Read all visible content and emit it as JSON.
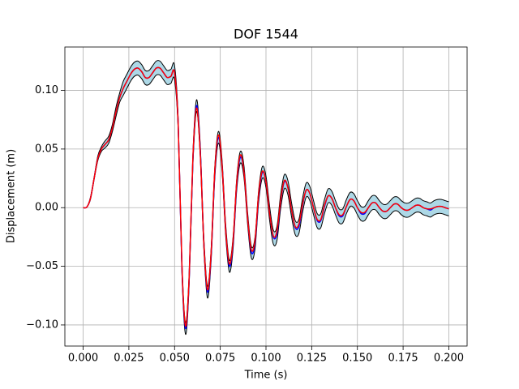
{
  "chart_data": {
    "type": "line",
    "title": "DOF 1544",
    "x_label": "Time (s)",
    "y_label": "Displacement (m)",
    "x": [
      0,
      0.002,
      0.004,
      0.006,
      0.008,
      0.01,
      0.012,
      0.014,
      0.016,
      0.018,
      0.02,
      0.022,
      0.024,
      0.026,
      0.028,
      0.03,
      0.032,
      0.034,
      0.036,
      0.038,
      0.04,
      0.042,
      0.044,
      0.046,
      0.048,
      0.05,
      0.052,
      0.054,
      0.056,
      0.058,
      0.06,
      0.062,
      0.064,
      0.066,
      0.068,
      0.07,
      0.072,
      0.074,
      0.076,
      0.078,
      0.08,
      0.082,
      0.084,
      0.086,
      0.088,
      0.09,
      0.092,
      0.094,
      0.096,
      0.098,
      0.1,
      0.102,
      0.104,
      0.106,
      0.108,
      0.11,
      0.112,
      0.114,
      0.116,
      0.118,
      0.12,
      0.122,
      0.124,
      0.126,
      0.128,
      0.13,
      0.132,
      0.134,
      0.136,
      0.138,
      0.14,
      0.142,
      0.144,
      0.146,
      0.148,
      0.15,
      0.152,
      0.154,
      0.156,
      0.158,
      0.16,
      0.162,
      0.164,
      0.166,
      0.168,
      0.17,
      0.172,
      0.174,
      0.176,
      0.178,
      0.18,
      0.182,
      0.184,
      0.186,
      0.188,
      0.19,
      0.192,
      0.194,
      0.196,
      0.198,
      0.2
    ],
    "series": [
      {
        "color": "#000000",
        "values": [
          0,
          0.0005,
          0.009,
          0.026,
          0.044,
          0.052,
          0.057,
          0.061,
          0.071,
          0.086,
          0.098,
          0.108,
          0.114,
          0.12,
          0.124,
          0.125,
          0.122,
          0.117,
          0.117,
          0.121,
          0.125,
          0.125,
          0.121,
          0.117,
          0.118,
          0.121,
          0.075,
          -0.045,
          -0.098,
          -0.055,
          0.045,
          0.092,
          0.055,
          -0.025,
          -0.067,
          -0.035,
          0.035,
          0.065,
          0.04,
          -0.015,
          -0.045,
          -0.025,
          0.025,
          0.048,
          0.035,
          -0.005,
          -0.033,
          -0.025,
          0.015,
          0.035,
          0.027,
          0.001,
          -0.019,
          -0.016,
          0.011,
          0.028,
          0.023,
          0.004,
          -0.011,
          -0.01,
          0.008,
          0.021,
          0.018,
          0.006,
          -0.005,
          -0.005,
          0.007,
          0.016,
          0.014,
          0.006,
          -0.001,
          -0.001,
          0.007,
          0.013,
          0.012,
          0.006,
          0.001,
          0.001,
          0.006,
          0.01,
          0.01,
          0.006,
          0.003,
          0.003,
          0.006,
          0.009,
          0.009,
          0.006,
          0.004,
          0.004,
          0.006,
          0.008,
          0.008,
          0.006,
          0.005,
          0.004,
          0.006,
          0.007,
          0.007,
          0.006,
          0.005
        ]
      },
      {
        "color": "#000000",
        "values": [
          0,
          0.0005,
          0.007,
          0.024,
          0.04,
          0.048,
          0.051,
          0.055,
          0.065,
          0.078,
          0.09,
          0.096,
          0.102,
          0.108,
          0.112,
          0.113,
          0.11,
          0.105,
          0.105,
          0.109,
          0.113,
          0.113,
          0.109,
          0.105,
          0.106,
          0.109,
          0.065,
          -0.055,
          -0.108,
          -0.065,
          0.035,
          0.082,
          0.045,
          -0.035,
          -0.077,
          -0.045,
          0.025,
          0.055,
          0.03,
          -0.025,
          -0.055,
          -0.035,
          0.015,
          0.038,
          0.025,
          -0.015,
          -0.043,
          -0.035,
          0.005,
          0.025,
          0.017,
          -0.011,
          -0.031,
          -0.028,
          -0.001,
          0.016,
          0.011,
          -0.008,
          -0.023,
          -0.022,
          -0.004,
          0.009,
          0.006,
          -0.006,
          -0.017,
          -0.017,
          -0.005,
          0.004,
          0.002,
          -0.006,
          -0.013,
          -0.013,
          -0.005,
          0.001,
          0,
          -0.006,
          -0.011,
          -0.011,
          -0.006,
          -0.002,
          -0.002,
          -0.006,
          -0.009,
          -0.009,
          -0.006,
          -0.003,
          -0.003,
          -0.006,
          -0.008,
          -0.008,
          -0.006,
          -0.004,
          -0.004,
          -0.006,
          -0.007,
          -0.008,
          -0.006,
          -0.005,
          -0.005,
          -0.006,
          -0.007
        ]
      },
      {
        "color": "#0000ff",
        "values": [
          0,
          0.0005,
          0.008,
          0.025,
          0.042,
          0.05,
          0.054,
          0.058,
          0.068,
          0.082,
          0.094,
          0.102,
          0.108,
          0.114,
          0.118,
          0.119,
          0.116,
          0.111,
          0.111,
          0.115,
          0.119,
          0.119,
          0.115,
          0.111,
          0.112,
          0.115,
          0.07,
          -0.05,
          -0.103,
          -0.06,
          0.04,
          0.087,
          0.05,
          -0.03,
          -0.072,
          -0.04,
          0.03,
          0.06,
          0.035,
          -0.02,
          -0.05,
          -0.03,
          0.02,
          0.043,
          0.03,
          -0.01,
          -0.038,
          -0.03,
          0.01,
          0.03,
          0.022,
          -0.005,
          -0.025,
          -0.022,
          0.005,
          0.022,
          0.017,
          -0.002,
          -0.017,
          -0.016,
          0.002,
          0.015,
          0.012,
          0,
          -0.011,
          -0.011,
          0.001,
          0.01,
          0.008,
          0,
          -0.007,
          -0.007,
          0.001,
          0.007,
          0.006,
          0,
          -0.005,
          -0.005,
          0,
          0.004,
          0.004,
          0,
          -0.003,
          -0.003,
          0,
          0.003,
          0.003,
          0,
          -0.002,
          -0.002,
          0,
          0.002,
          0.002,
          0,
          -0.001,
          -0.002,
          0,
          0.001,
          0.001,
          0,
          -0.001
        ]
      },
      {
        "color": "#ff0000",
        "values": [
          0,
          0.0005,
          0.008,
          0.025,
          0.042,
          0.05,
          0.054,
          0.058,
          0.068,
          0.082,
          0.094,
          0.102,
          0.108,
          0.114,
          0.118,
          0.119,
          0.116,
          0.111,
          0.111,
          0.115,
          0.119,
          0.119,
          0.115,
          0.111,
          0.112,
          0.115,
          0.07,
          -0.048,
          -0.101,
          -0.058,
          0.042,
          0.085,
          0.048,
          -0.03,
          -0.07,
          -0.038,
          0.032,
          0.062,
          0.035,
          -0.02,
          -0.048,
          -0.028,
          0.022,
          0.045,
          0.03,
          -0.01,
          -0.036,
          -0.028,
          0.012,
          0.031,
          0.022,
          -0.005,
          -0.024,
          -0.02,
          0.006,
          0.023,
          0.017,
          -0.002,
          -0.016,
          -0.014,
          0.003,
          0.015,
          0.012,
          0,
          -0.01,
          -0.01,
          0.002,
          0.01,
          0.008,
          0,
          -0.006,
          -0.006,
          0.001,
          0.007,
          0.006,
          0,
          -0.004,
          -0.004,
          0,
          0.004,
          0.004,
          0,
          -0.003,
          -0.003,
          0,
          0.003,
          0.003,
          0,
          -0.002,
          -0.002,
          0,
          0.002,
          0.002,
          0,
          -0.001,
          -0.001,
          0,
          0.001,
          0.001,
          0,
          -0.001
        ]
      }
    ],
    "band": {
      "color": "#add8e6",
      "series": [
        0,
        1
      ]
    },
    "xlim": [
      -0.01,
      0.21
    ],
    "xticks": [
      {
        "value": 0,
        "label": "0.000"
      },
      {
        "value": 0.025,
        "label": "0.025"
      },
      {
        "value": 0.05,
        "label": "0.050"
      },
      {
        "value": 0.075,
        "label": "0.075"
      },
      {
        "value": 0.1,
        "label": "0.100"
      },
      {
        "value": 0.125,
        "label": "0.125"
      },
      {
        "value": 0.15,
        "label": "0.150"
      },
      {
        "value": 0.175,
        "label": "0.175"
      },
      {
        "value": 0.2,
        "label": "0.200"
      }
    ],
    "ylim": [
      -0.118,
      0.137
    ],
    "yticks": [
      {
        "value": -0.1,
        "label": "−0.10"
      },
      {
        "value": -0.05,
        "label": "−0.05"
      },
      {
        "value": 0,
        "label": "0.00"
      },
      {
        "value": 0.05,
        "label": "0.05"
      },
      {
        "value": 0.1,
        "label": "0.10"
      }
    ],
    "grid": true
  }
}
